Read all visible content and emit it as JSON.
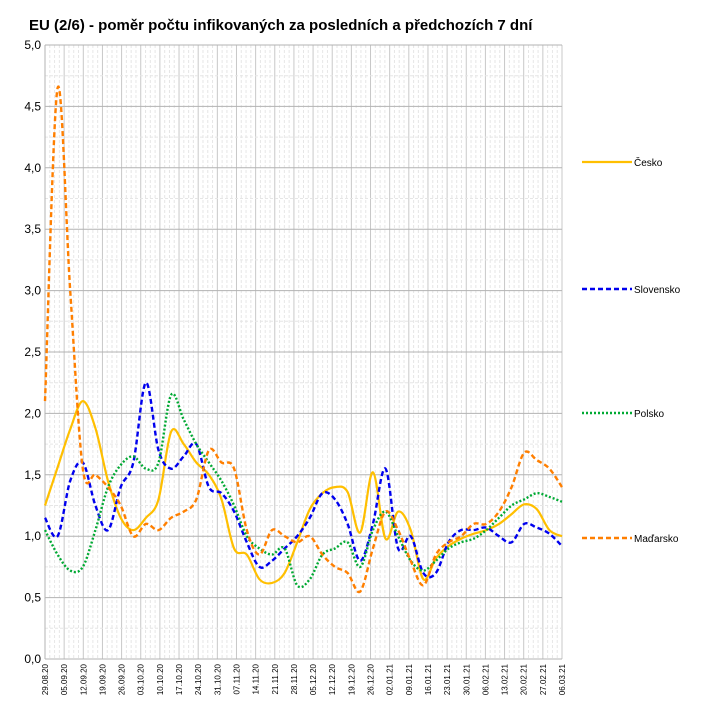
{
  "chart_data": {
    "type": "line",
    "title": "EU (2/6) - poměr počtu infikovaných za posledních a předchozích 7 dní",
    "xlabel": "",
    "ylabel": "",
    "ylim": [
      0,
      5
    ],
    "yticks": [
      "0,0",
      "0,5",
      "1,0",
      "1,5",
      "2,0",
      "2,5",
      "3,0",
      "3,5",
      "4,0",
      "4,5",
      "5,0"
    ],
    "xticks": [
      "29.08.20",
      "05.09.20",
      "12.09.20",
      "19.09.20",
      "26.09.20",
      "03.10.20",
      "10.10.20",
      "17.10.20",
      "24.10.20",
      "31.10.20",
      "07.11.20",
      "14.11.20",
      "21.11.20",
      "28.11.20",
      "05.12.20",
      "12.12.20",
      "19.12.20",
      "26.12.20",
      "02.01.21",
      "09.01.21",
      "16.01.21",
      "23.01.21",
      "30.01.21",
      "06.02.21",
      "13.02.21",
      "20.02.21",
      "27.02.21",
      "06.03.21"
    ],
    "grid": true,
    "legend_position": "right",
    "series": [
      {
        "name": "Česko",
        "color": "#ffbf00",
        "dash": "solid",
        "values": [
          1.25,
          1.56,
          1.87,
          2.1,
          1.88,
          1.45,
          1.15,
          1.05,
          1.15,
          1.3,
          1.85,
          1.75,
          1.6,
          1.5,
          1.3,
          0.9,
          0.85,
          0.65,
          0.62,
          0.7,
          0.95,
          1.22,
          1.35,
          1.4,
          1.36,
          1.03,
          1.52,
          0.98,
          1.2,
          1.05,
          0.65,
          0.82,
          0.92,
          0.98,
          1.02,
          1.05,
          1.1,
          1.18,
          1.26,
          1.22,
          1.05,
          1.0
        ]
      },
      {
        "name": "Slovensko",
        "color": "#0000ee",
        "dash": "dashed",
        "values": [
          1.15,
          1.0,
          1.45,
          1.6,
          1.25,
          1.05,
          1.4,
          1.6,
          2.25,
          1.7,
          1.55,
          1.65,
          1.75,
          1.4,
          1.35,
          1.2,
          0.95,
          0.75,
          0.8,
          0.9,
          1.0,
          1.15,
          1.35,
          1.3,
          1.1,
          0.8,
          1.1,
          1.55,
          0.9,
          1.0,
          0.7,
          0.7,
          0.95,
          1.05,
          1.05,
          1.07,
          1.0,
          0.95,
          1.1,
          1.07,
          1.02,
          0.92
        ]
      },
      {
        "name": "Polsko",
        "color": "#00a933",
        "dash": "dotted",
        "values": [
          1.05,
          0.85,
          0.72,
          0.75,
          1.05,
          1.4,
          1.58,
          1.65,
          1.55,
          1.6,
          2.15,
          1.95,
          1.75,
          1.6,
          1.45,
          1.25,
          1.0,
          0.9,
          0.85,
          0.9,
          0.6,
          0.65,
          0.85,
          0.9,
          0.95,
          0.75,
          1.05,
          1.2,
          1.0,
          0.8,
          0.72,
          0.8,
          0.9,
          0.95,
          0.98,
          1.05,
          1.15,
          1.25,
          1.3,
          1.35,
          1.32,
          1.28
        ]
      },
      {
        "name": "Maďarsko",
        "color": "#ff7f00",
        "dash": "dashed",
        "values": [
          2.1,
          4.65,
          3.0,
          1.55,
          1.5,
          1.4,
          1.25,
          1.0,
          1.1,
          1.05,
          1.15,
          1.2,
          1.3,
          1.7,
          1.6,
          1.55,
          1.05,
          0.85,
          1.05,
          1.0,
          0.95,
          1.0,
          0.85,
          0.75,
          0.7,
          0.55,
          0.9,
          1.2,
          1.05,
          0.8,
          0.6,
          0.85,
          0.95,
          1.0,
          1.1,
          1.1,
          1.2,
          1.4,
          1.68,
          1.62,
          1.55,
          1.4
        ]
      }
    ]
  }
}
